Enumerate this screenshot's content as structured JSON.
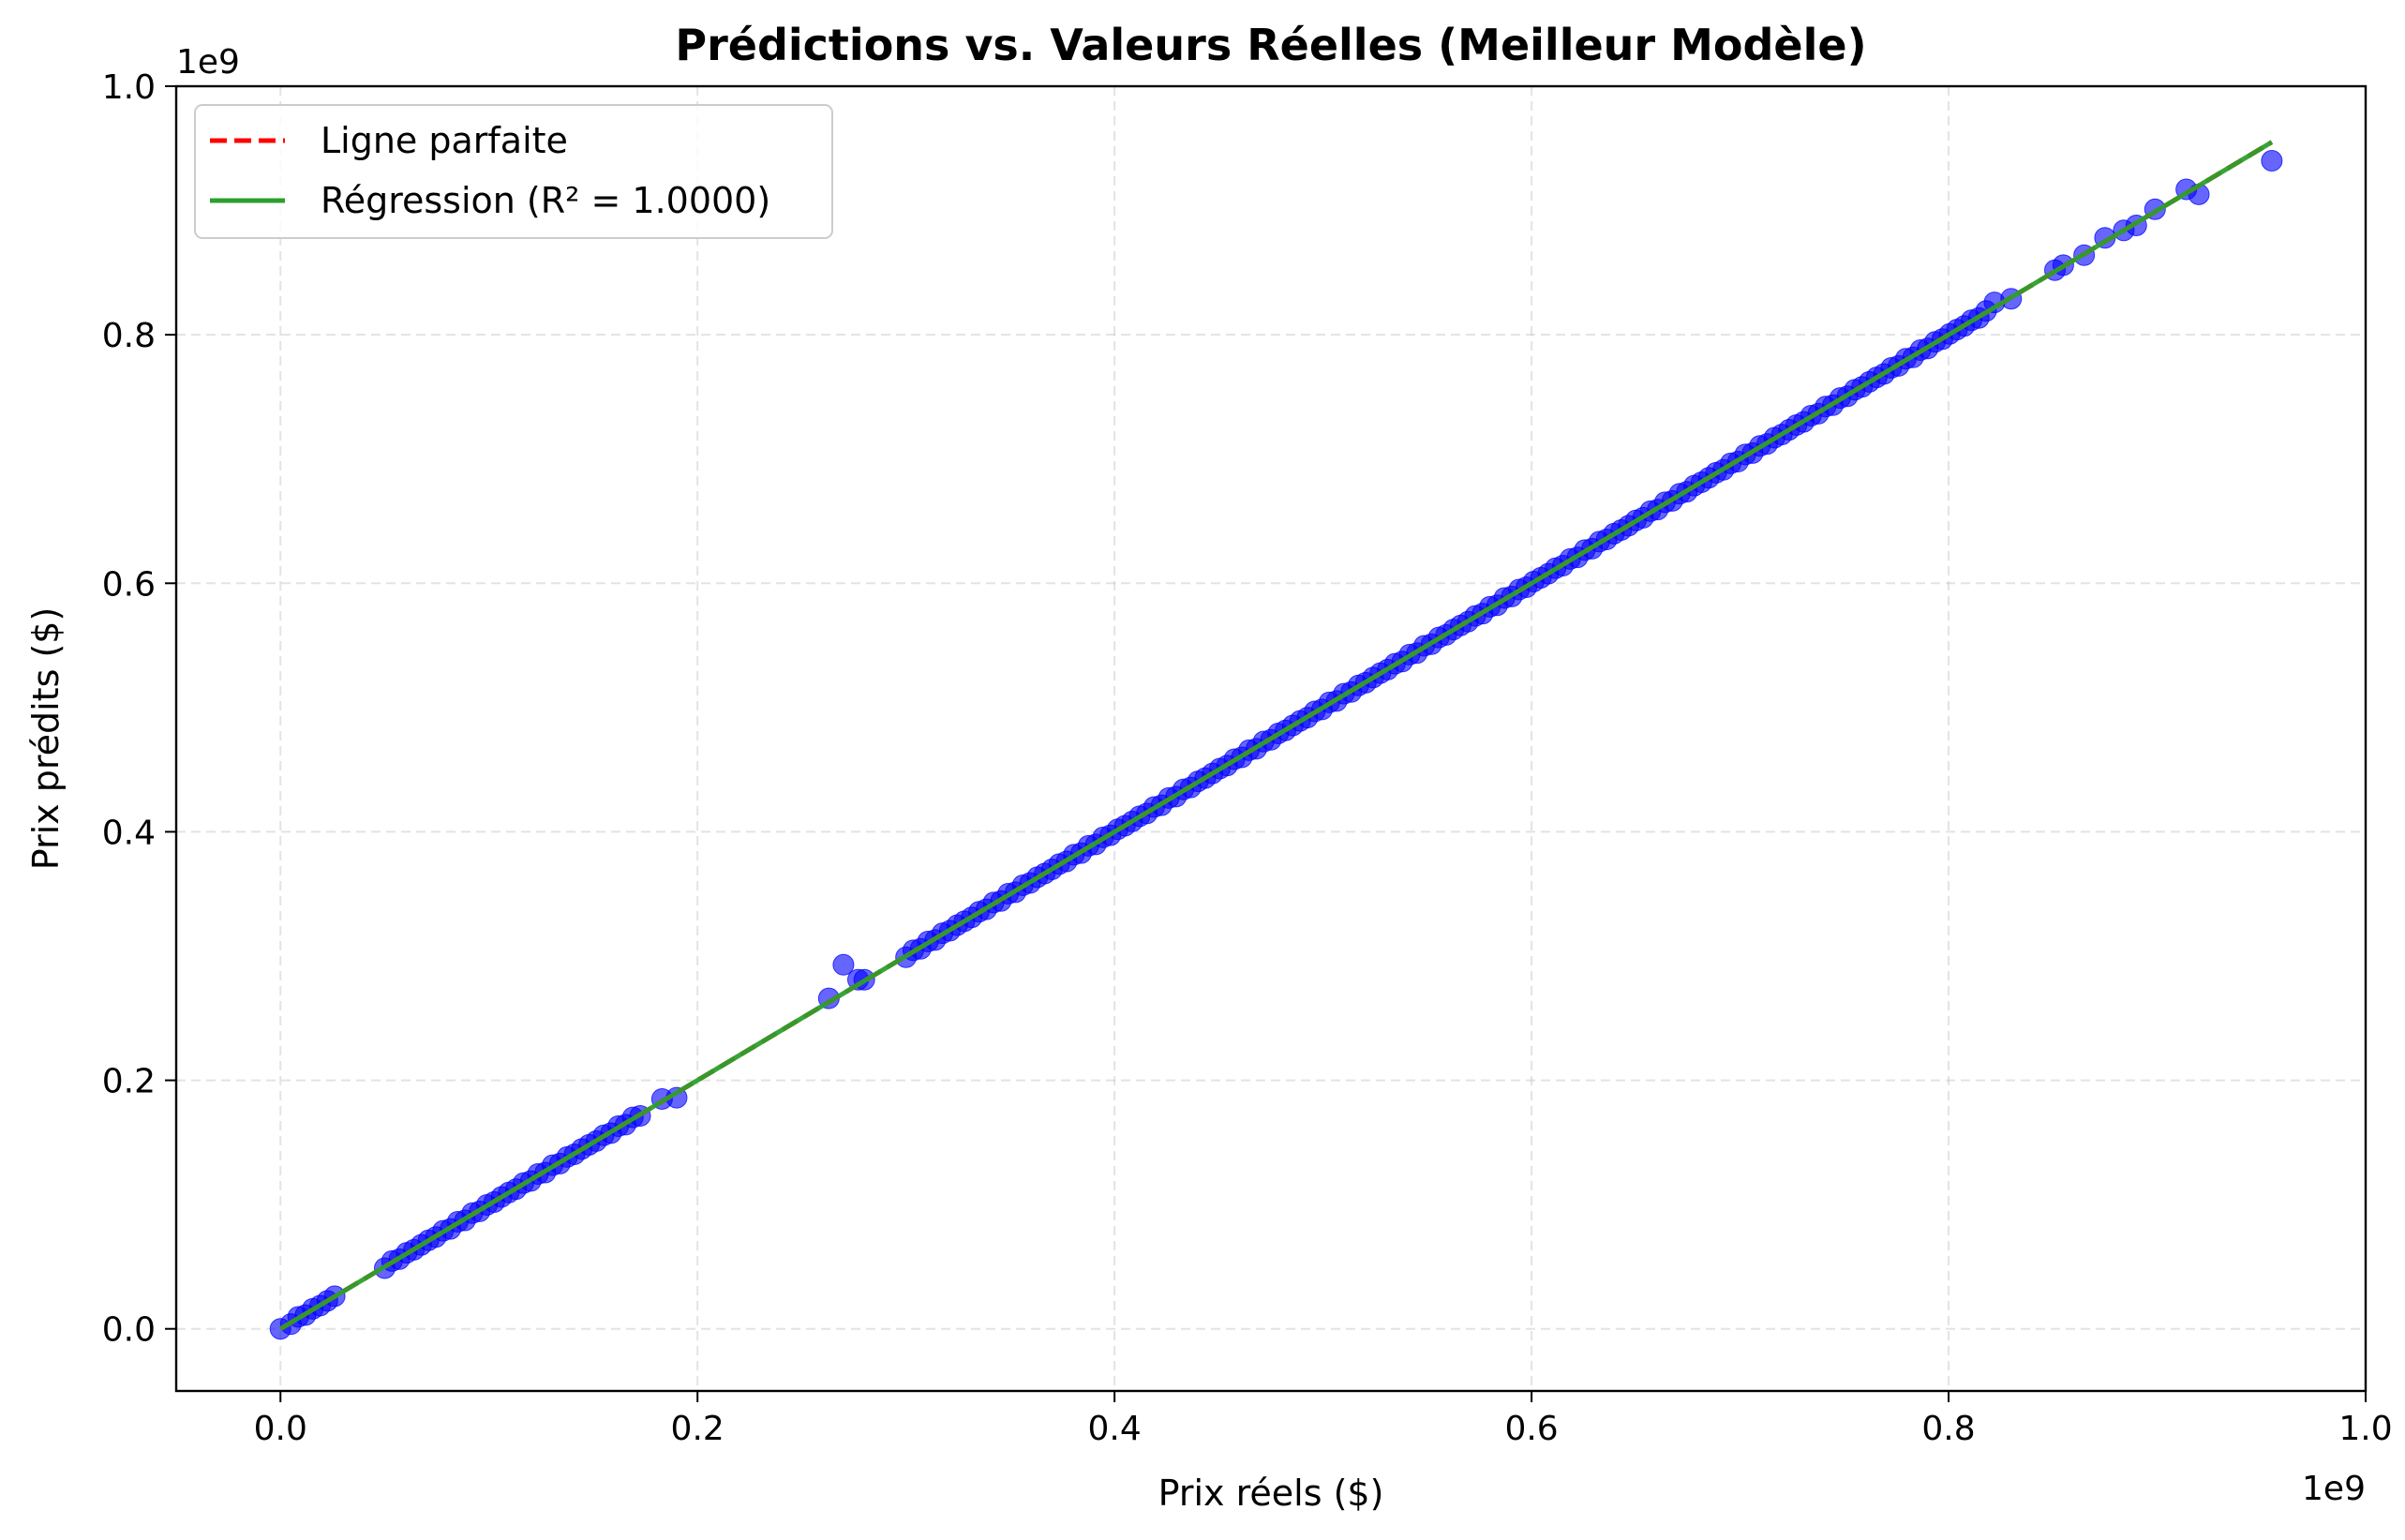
{
  "chart_data": {
    "type": "scatter",
    "title": "Prédictions vs. Valeurs Réelles (Meilleur Modèle)",
    "xlabel": "Prix réels ($)",
    "ylabel": "Prix prédits ($)",
    "x_offset_label": "1e9",
    "y_offset_label": "1e9",
    "xlim": [
      -0.05,
      1.0
    ],
    "ylim": [
      -0.05,
      1.0
    ],
    "xticks": [
      0.0,
      0.2,
      0.4,
      0.6,
      0.8,
      1.0
    ],
    "xtick_labels": [
      "0.0",
      "0.2",
      "0.4",
      "0.6",
      "0.8",
      "1.0"
    ],
    "yticks": [
      0.0,
      0.2,
      0.4,
      0.6,
      0.8,
      1.0
    ],
    "ytick_labels": [
      "0.0",
      "0.2",
      "0.4",
      "0.6",
      "0.8",
      "1.0"
    ],
    "grid": true,
    "legend_position": "top-left",
    "legend": [
      {
        "label": "Ligne parfaite",
        "color": "#ff0000",
        "style": "dashed"
      },
      {
        "label": "Régression (R² = 1.0000)",
        "color": "#2ca02c",
        "style": "solid"
      }
    ],
    "perfect_line": {
      "x": [
        0.0,
        0.955
      ],
      "y": [
        0.0,
        0.955
      ],
      "color": "#ff0000"
    },
    "regression_line": {
      "x": [
        0.0,
        0.955
      ],
      "y": [
        0.0,
        0.955
      ],
      "color": "#2ca02c"
    },
    "scatter_color": "#0000ff",
    "dense_ranges": [
      [
        0.005,
        0.028
      ],
      [
        0.05,
        0.175
      ],
      [
        0.3,
        0.82
      ]
    ],
    "outlier_points": [
      {
        "x": 0.0,
        "y": 0.0
      },
      {
        "x": 0.183,
        "y": 0.185
      },
      {
        "x": 0.19,
        "y": 0.186
      },
      {
        "x": 0.263,
        "y": 0.266
      },
      {
        "x": 0.27,
        "y": 0.293
      },
      {
        "x": 0.277,
        "y": 0.281
      },
      {
        "x": 0.28,
        "y": 0.281
      },
      {
        "x": 0.822,
        "y": 0.826
      },
      {
        "x": 0.83,
        "y": 0.829
      },
      {
        "x": 0.851,
        "y": 0.852
      },
      {
        "x": 0.855,
        "y": 0.856
      },
      {
        "x": 0.865,
        "y": 0.864
      },
      {
        "x": 0.875,
        "y": 0.878
      },
      {
        "x": 0.884,
        "y": 0.884
      },
      {
        "x": 0.89,
        "y": 0.888
      },
      {
        "x": 0.899,
        "y": 0.901
      },
      {
        "x": 0.914,
        "y": 0.917
      },
      {
        "x": 0.92,
        "y": 0.913
      },
      {
        "x": 0.955,
        "y": 0.94
      }
    ]
  }
}
